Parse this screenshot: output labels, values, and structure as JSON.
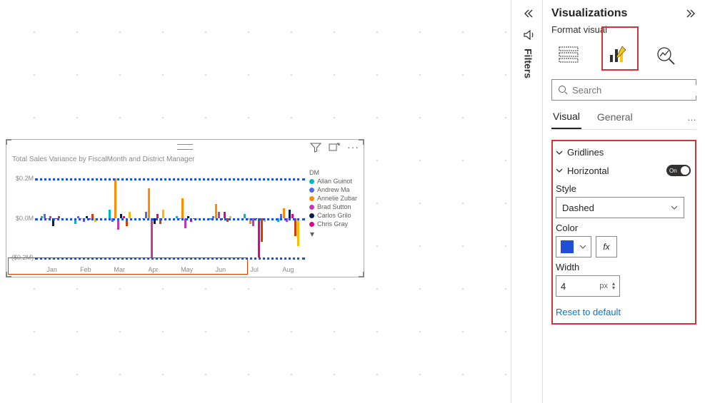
{
  "pane": {
    "title": "Visualizations",
    "subtitle": "Format visual",
    "search_placeholder": "Search",
    "tabs": {
      "visual": "Visual",
      "general": "General"
    }
  },
  "filters_label": "Filters",
  "gridlines_panel": {
    "title": "Gridlines",
    "horizontal": {
      "label": "Horizontal",
      "toggle_label": "On",
      "style_label": "Style",
      "style_value": "Dashed",
      "color_label": "Color",
      "color_value": "#1f4fd6",
      "width_label": "Width",
      "width_value": "4",
      "width_unit": "px"
    },
    "reset_label": "Reset to default"
  },
  "chart": {
    "title": "Total Sales Variance by FiscalMonth and District Manager",
    "legend_header": "DM",
    "legend": [
      {
        "label": "Allan Guinot",
        "color": "#00b7c3"
      },
      {
        "label": "Andrew Ma",
        "color": "#4f6bed"
      },
      {
        "label": "Annelie Zubar",
        "color": "#ff8c00"
      },
      {
        "label": "Brad Sutton",
        "color": "#c239b3"
      },
      {
        "label": "Carlos Grilo",
        "color": "#002050"
      },
      {
        "label": "Chris Gray",
        "color": "#e3008c"
      }
    ],
    "y_axis": {
      "ticks": [
        {
          "label": "$0.2M",
          "v": 0.2
        },
        {
          "label": "$0.0M",
          "v": 0.0
        },
        {
          "label": "($0.2M)",
          "v": -0.2
        }
      ],
      "min": -0.22,
      "max": 0.26
    },
    "gridline_color": "#1f4fd6",
    "months": [
      "Jan",
      "Feb",
      "Mar",
      "Apr",
      "May",
      "Jun",
      "Jul",
      "Aug"
    ],
    "series_colors": [
      "#00b7c3",
      "#4f6bed",
      "#ff8c00",
      "#c239b3",
      "#002050",
      "#e3008c",
      "#d83b01",
      "#ffb900"
    ],
    "data": [
      [
        0.01,
        0.02,
        0.0,
        0.01,
        -0.04,
        0.0,
        0.01,
        0.0
      ],
      [
        -0.03,
        0.01,
        0.0,
        -0.02,
        0.01,
        -0.01,
        0.02,
        -0.02
      ],
      [
        0.04,
        -0.02,
        0.2,
        -0.06,
        0.02,
        0.01,
        -0.04,
        0.03
      ],
      [
        0.0,
        0.03,
        0.15,
        -0.2,
        -0.03,
        0.02,
        -0.03,
        0.04
      ],
      [
        0.01,
        0.0,
        0.1,
        -0.05,
        0.01,
        -0.02,
        0.0,
        -0.01
      ],
      [
        -0.01,
        0.01,
        0.07,
        0.03,
        -0.01,
        0.03,
        -0.02,
        0.01
      ],
      [
        0.02,
        -0.01,
        -0.03,
        -0.04,
        0.0,
        -0.2,
        -0.12,
        -0.02
      ],
      [
        -0.02,
        0.02,
        0.05,
        -0.02,
        0.04,
        0.02,
        -0.09,
        -0.14
      ]
    ]
  },
  "highlight_boxes": {
    "mode_button": true,
    "gridlines_panel": true,
    "chart_bottom_row": true
  }
}
